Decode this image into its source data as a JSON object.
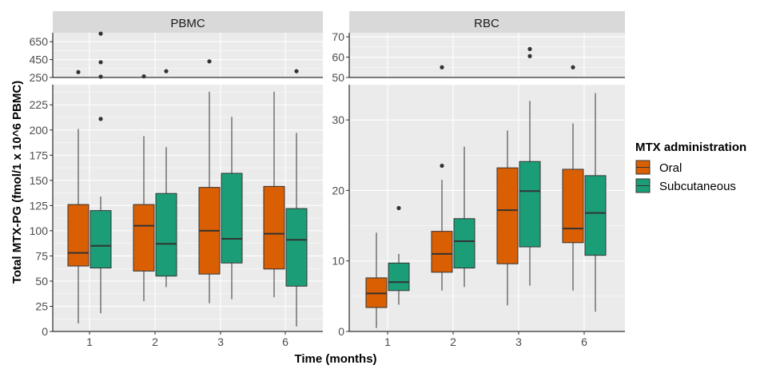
{
  "chart_data": {
    "type": "boxplot",
    "xlabel": "Time (months)",
    "ylabel": "Total MTX-PG (fmol/1 x 10^6 PBMC)",
    "categories": [
      "1",
      "2",
      "3",
      "6"
    ],
    "legend": {
      "title": "MTX administration",
      "placement": "right",
      "entries": [
        {
          "name": "Oral",
          "color": "#D95F02"
        },
        {
          "name": "Subcutaneous",
          "color": "#1B9E77"
        }
      ]
    },
    "grid": true,
    "panels": [
      {
        "title": "PBMC",
        "y_top_break": {
          "ylim": [
            250,
            750
          ],
          "ticks": [
            "250",
            "450",
            "650"
          ]
        },
        "y_main": {
          "ylim": [
            0,
            245
          ],
          "ticks": [
            "0",
            "25",
            "50",
            "75",
            "100",
            "125",
            "150",
            "175",
            "200",
            "225"
          ]
        },
        "series": [
          {
            "name": "Oral",
            "boxes": [
              {
                "category": "1",
                "min": 8,
                "q1": 65,
                "median": 78,
                "q3": 126,
                "max": 201
              },
              {
                "category": "2",
                "min": 30,
                "q1": 60,
                "median": 105,
                "q3": 126,
                "max": 194
              },
              {
                "category": "3",
                "min": 28,
                "q1": 57,
                "median": 100,
                "q3": 143,
                "max": 238
              },
              {
                "category": "6",
                "min": 34,
                "q1": 62,
                "median": 97,
                "q3": 144,
                "max": 238
              }
            ]
          },
          {
            "name": "Subcutaneous",
            "boxes": [
              {
                "category": "1",
                "min": 18,
                "q1": 63,
                "median": 85,
                "q3": 120,
                "max": 134
              },
              {
                "category": "2",
                "min": 44,
                "q1": 55,
                "median": 87,
                "q3": 137,
                "max": 183
              },
              {
                "category": "3",
                "min": 32,
                "q1": 68,
                "median": 92,
                "q3": 157,
                "max": 213
              },
              {
                "category": "6",
                "min": 5,
                "q1": 45,
                "median": 91,
                "q3": 122,
                "max": 197
              }
            ]
          }
        ],
        "outliers": [
          {
            "category": "1",
            "series": "Oral",
            "y": 310
          },
          {
            "category": "1",
            "series": "Subcutaneous",
            "y": 211
          },
          {
            "category": "1",
            "series": "Subcutaneous",
            "y": 255
          },
          {
            "category": "1",
            "series": "Subcutaneous",
            "y": 420
          },
          {
            "category": "1",
            "series": "Subcutaneous",
            "y": 740
          },
          {
            "category": "2",
            "series": "Oral",
            "y": 262
          },
          {
            "category": "2",
            "series": "Subcutaneous",
            "y": 320
          },
          {
            "category": "3",
            "series": "Oral",
            "y": 430
          },
          {
            "category": "6",
            "series": "Subcutaneous",
            "y": 320
          }
        ]
      },
      {
        "title": "RBC",
        "y_top_break": {
          "ylim": [
            50,
            72
          ],
          "ticks": [
            "50",
            "60",
            "70"
          ]
        },
        "y_main": {
          "ylim": [
            0,
            35
          ],
          "ticks": [
            "0",
            "10",
            "20",
            "30"
          ]
        },
        "series": [
          {
            "name": "Oral",
            "boxes": [
              {
                "category": "1",
                "min": 0.5,
                "q1": 3.4,
                "median": 5.4,
                "q3": 7.6,
                "max": 14
              },
              {
                "category": "2",
                "min": 5.8,
                "q1": 8.4,
                "median": 11,
                "q3": 14.2,
                "max": 21.5
              },
              {
                "category": "3",
                "min": 3.7,
                "q1": 9.6,
                "median": 17.2,
                "q3": 23.2,
                "max": 28.5
              },
              {
                "category": "6",
                "min": 5.8,
                "q1": 12.6,
                "median": 14.6,
                "q3": 23,
                "max": 29.5
              }
            ]
          },
          {
            "name": "Subcutaneous",
            "boxes": [
              {
                "category": "1",
                "min": 3.8,
                "q1": 5.8,
                "median": 7,
                "q3": 9.7,
                "max": 11
              },
              {
                "category": "2",
                "min": 6.3,
                "q1": 9,
                "median": 12.8,
                "q3": 16,
                "max": 26.2
              },
              {
                "category": "3",
                "min": 6.5,
                "q1": 12,
                "median": 19.9,
                "q3": 24.1,
                "max": 32.7
              },
              {
                "category": "6",
                "min": 2.8,
                "q1": 10.8,
                "median": 16.8,
                "q3": 22.1,
                "max": 33.8
              }
            ]
          }
        ],
        "outliers": [
          {
            "category": "1",
            "series": "Subcutaneous",
            "y": 17.5
          },
          {
            "category": "2",
            "series": "Oral",
            "y": 23.5
          },
          {
            "category": "2",
            "series": "Oral",
            "y": 55
          },
          {
            "category": "3",
            "series": "Subcutaneous",
            "y": 60.5
          },
          {
            "category": "3",
            "series": "Subcutaneous",
            "y": 64
          },
          {
            "category": "6",
            "series": "Oral",
            "y": 55
          }
        ]
      }
    ]
  }
}
